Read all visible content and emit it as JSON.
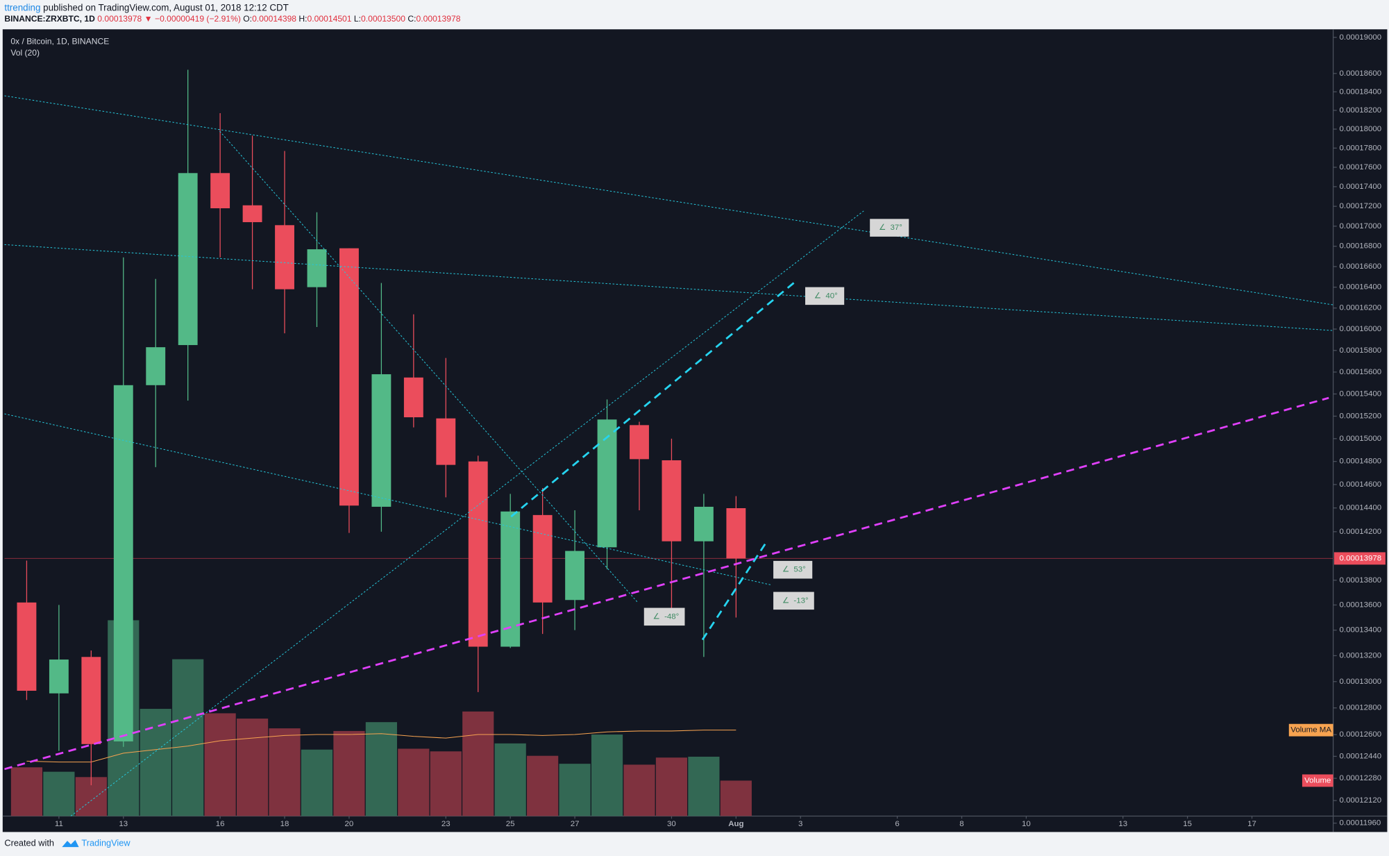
{
  "header": {
    "author": "ttrending",
    "published": "published on TradingView.com, August 01, 2018 12:12 CDT",
    "symbol": "BINANCE:ZRXBTC, 1D",
    "last": "0.00013978",
    "arrow": "▼",
    "change": "−0.00000419 (−2.91%)",
    "o_label": "O:",
    "o": "0.00014398",
    "h_label": "H:",
    "h": "0.00014501",
    "l_label": "L:",
    "l": "0.00013500",
    "c_label": "C:",
    "c": "0.00013978"
  },
  "footer": {
    "created": "Created with",
    "brand": "TradingView"
  },
  "annotations": [
    "37°",
    "40°",
    "53°",
    "-13°",
    "-48°"
  ],
  "chart_data": {
    "type": "candlestick",
    "title": "0x / Bitcoin, 1D, BINANCE",
    "volume_title": "Vol (20)",
    "log_scale": true,
    "grid": false,
    "up_color": "#53b987",
    "down_color": "#eb4d5c",
    "volume_up_color": "#336854",
    "volume_down_color": "#7f323f",
    "x": [
      10,
      11,
      12,
      13,
      14,
      15,
      16,
      17,
      18,
      19,
      20,
      21,
      22,
      23,
      24,
      25,
      26,
      27,
      28,
      29,
      30,
      31,
      32
    ],
    "open": [
      0.0001362,
      0.0001291,
      0.0001319,
      0.0001255,
      0.0001548,
      0.0001585,
      0.0001754,
      0.0001721,
      0.0001701,
      0.000164,
      0.0001678,
      0.0001441,
      0.0001555,
      0.0001518,
      0.000148,
      0.0001327,
      0.0001434,
      0.0001364,
      0.0001407,
      0.0001512,
      0.0001481,
      0.0001412,
      0.00014398
    ],
    "high": [
      0.0001396,
      0.000136,
      0.0001324,
      0.0001669,
      0.0001648,
      0.0001864,
      0.0001817,
      0.0001793,
      0.0001777,
      0.0001714,
      0.0001678,
      0.0001644,
      0.0001614,
      0.0001573,
      0.0001485,
      0.0001452,
      0.0001457,
      0.0001438,
      0.0001535,
      0.0001515,
      0.00015,
      0.0001452,
      0.00014501
    ],
    "low": [
      0.0001286,
      0.0001248,
      0.0001223,
      0.0001251,
      0.0001475,
      0.0001534,
      0.0001669,
      0.0001638,
      0.0001596,
      0.0001602,
      0.0001419,
      0.000142,
      0.000151,
      0.0001449,
      0.0001292,
      0.0001326,
      0.0001337,
      0.000134,
      0.0001389,
      0.0001438,
      0.0001356,
      0.0001319,
      0.000135
    ],
    "close": [
      0.0001293,
      0.0001317,
      0.0001253,
      0.0001548,
      0.0001583,
      0.0001754,
      0.0001718,
      0.0001704,
      0.0001638,
      0.0001677,
      0.0001442,
      0.0001558,
      0.0001519,
      0.0001477,
      0.0001327,
      0.0001437,
      0.0001362,
      0.0001404,
      0.0001517,
      0.0001482,
      0.0001412,
      0.0001441,
      0.00013978
    ],
    "volume": [
      55,
      50,
      44,
      221,
      121,
      177,
      116,
      110,
      99,
      75,
      96,
      106,
      76,
      73,
      118,
      82,
      68,
      59,
      92,
      58,
      66,
      67,
      40
    ],
    "volume_ma": [
      62,
      61,
      61,
      71,
      75,
      79,
      85,
      88,
      91,
      92,
      92,
      93,
      90,
      88,
      92,
      92,
      91,
      92,
      95,
      96,
      96,
      97,
      97
    ],
    "volume_ylim": [
      0,
      886
    ],
    "volume_name": "Volume",
    "volume_ma_name": "Volume MA",
    "volume_ma_color": "#f7a350",
    "last_price": 0.00013978,
    "last_price_color": "#eb4d5c",
    "xlim": [
      9.31,
      50.52
    ],
    "xticks": [
      11,
      13,
      16,
      18,
      20,
      23,
      25,
      27,
      30,
      {
        "value": 32,
        "label": "Aug"
      },
      {
        "value": 34,
        "label": "3"
      },
      {
        "value": 37,
        "label": "6"
      },
      {
        "value": 39,
        "label": "8"
      },
      {
        "value": 41,
        "label": "10"
      },
      {
        "value": 44,
        "label": "13"
      },
      {
        "value": 46,
        "label": "15"
      },
      {
        "value": 48,
        "label": "17"
      }
    ],
    "ylim": [
      0.0001196,
      0.0001907
    ],
    "yticks": [
      {
        "value": 0.00019,
        "label": "0.00019000"
      },
      {
        "value": 0.000186,
        "label": "0.00018600"
      },
      {
        "value": 0.000184,
        "label": "0.00018400"
      },
      {
        "value": 0.000182,
        "label": "0.00018200"
      },
      {
        "value": 0.00018,
        "label": "0.00018000"
      },
      {
        "value": 0.000178,
        "label": "0.00017800"
      },
      {
        "value": 0.000176,
        "label": "0.00017600"
      },
      {
        "value": 0.000174,
        "label": "0.00017400"
      },
      {
        "value": 0.000172,
        "label": "0.00017200"
      },
      {
        "value": 0.00017,
        "label": "0.00017000"
      },
      {
        "value": 0.000168,
        "label": "0.00016800"
      },
      {
        "value": 0.000166,
        "label": "0.00016600"
      },
      {
        "value": 0.000164,
        "label": "0.00016400"
      },
      {
        "value": 0.000162,
        "label": "0.00016200"
      },
      {
        "value": 0.00016,
        "label": "0.00016000"
      },
      {
        "value": 0.000158,
        "label": "0.00015800"
      },
      {
        "value": 0.000156,
        "label": "0.00015600"
      },
      {
        "value": 0.000154,
        "label": "0.00015400"
      },
      {
        "value": 0.000152,
        "label": "0.00015200"
      },
      {
        "value": 0.00015,
        "label": "0.00015000"
      },
      {
        "value": 0.000148,
        "label": "0.00014800"
      },
      {
        "value": 0.000146,
        "label": "0.00014600"
      },
      {
        "value": 0.000144,
        "label": "0.00014400"
      },
      {
        "value": 0.000142,
        "label": "0.00014200"
      },
      {
        "value": 0.000138,
        "label": "0.00013800"
      },
      {
        "value": 0.000136,
        "label": "0.00013600"
      },
      {
        "value": 0.000134,
        "label": "0.00013400"
      },
      {
        "value": 0.000132,
        "label": "0.00013200"
      },
      {
        "value": 0.00013,
        "label": "0.00013000"
      },
      {
        "value": 0.000128,
        "label": "0.00012800"
      },
      {
        "value": 0.000126,
        "label": "0.00012600"
      },
      {
        "value": 0.0001244,
        "label": "0.00012440"
      },
      {
        "value": 0.0001228,
        "label": "0.00012280"
      },
      {
        "value": 0.0001212,
        "label": "0.00012120"
      },
      {
        "value": 0.0001196,
        "label": "0.00011960"
      }
    ]
  }
}
